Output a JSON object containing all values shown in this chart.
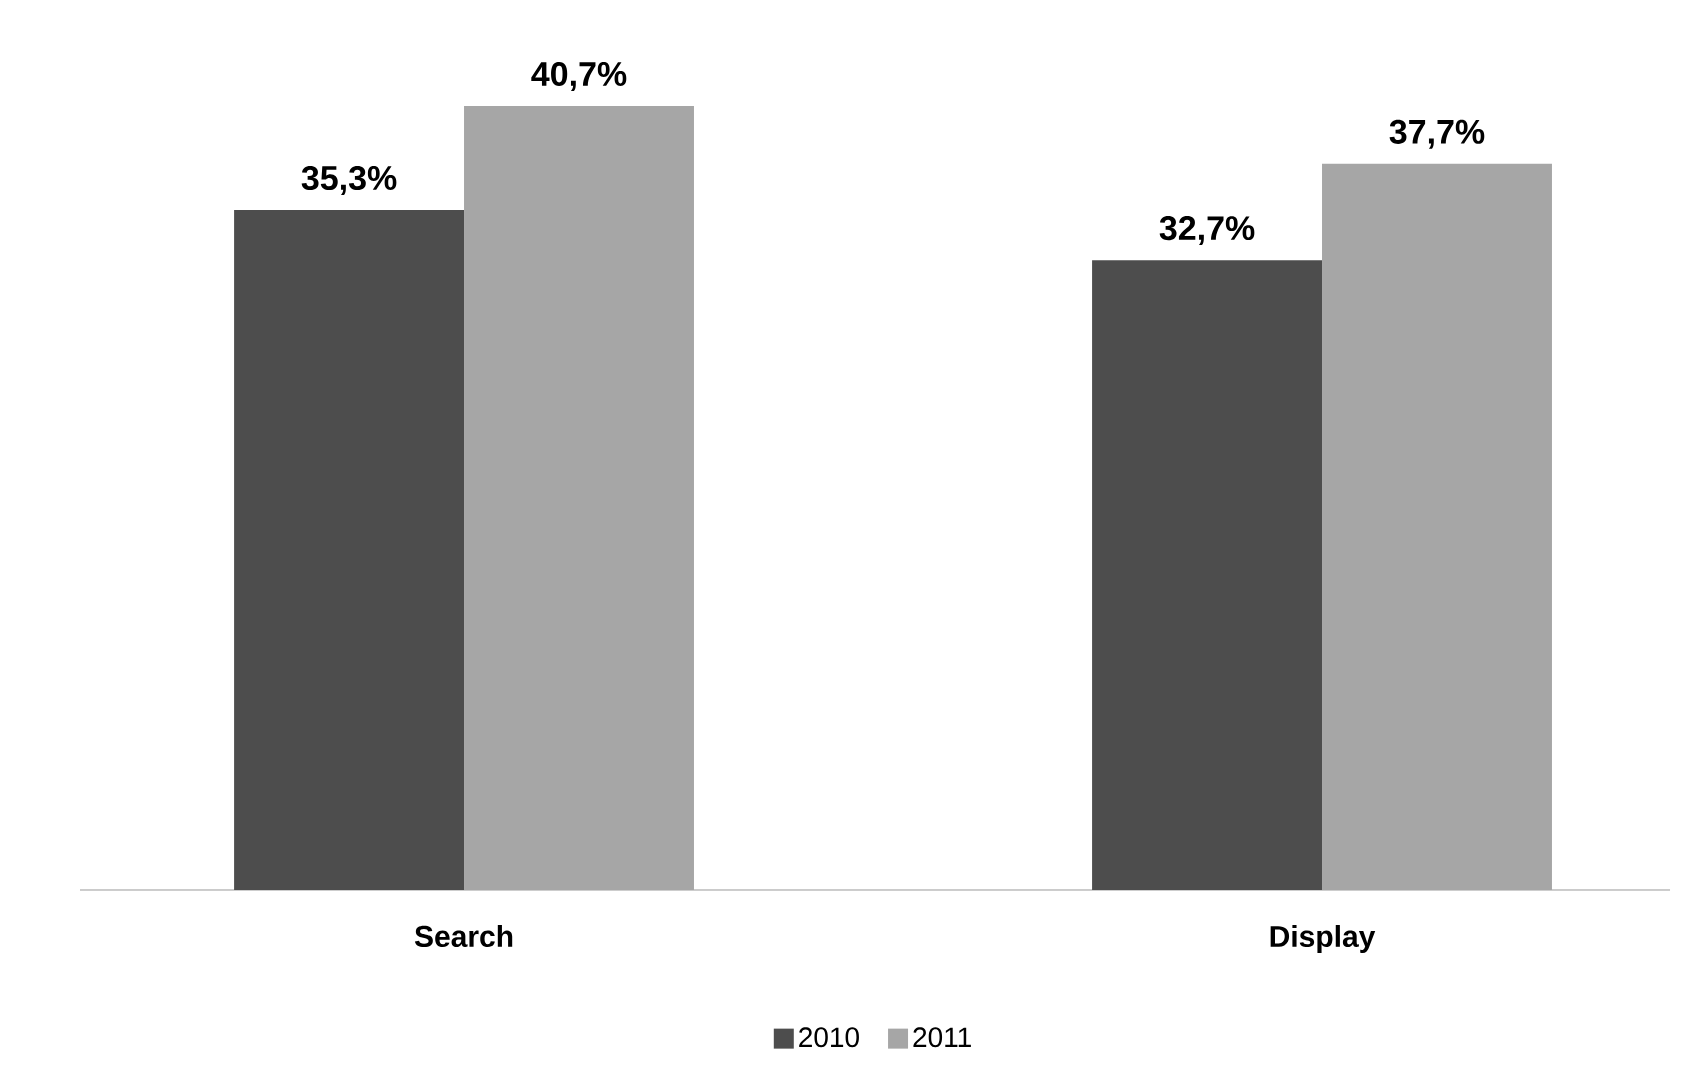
{
  "chart_data": {
    "type": "bar",
    "categories": [
      "Search",
      "Display"
    ],
    "series": [
      {
        "name": "2010",
        "color": "#4d4d4d",
        "values": [
          35.3,
          32.7
        ],
        "value_labels": [
          "35,3%",
          "32,7%"
        ]
      },
      {
        "name": "2011",
        "color": "#a6a6a6",
        "values": [
          40.7,
          37.7
        ],
        "value_labels": [
          "40,7%",
          "37,7%"
        ]
      }
    ],
    "legend": "bottom"
  }
}
